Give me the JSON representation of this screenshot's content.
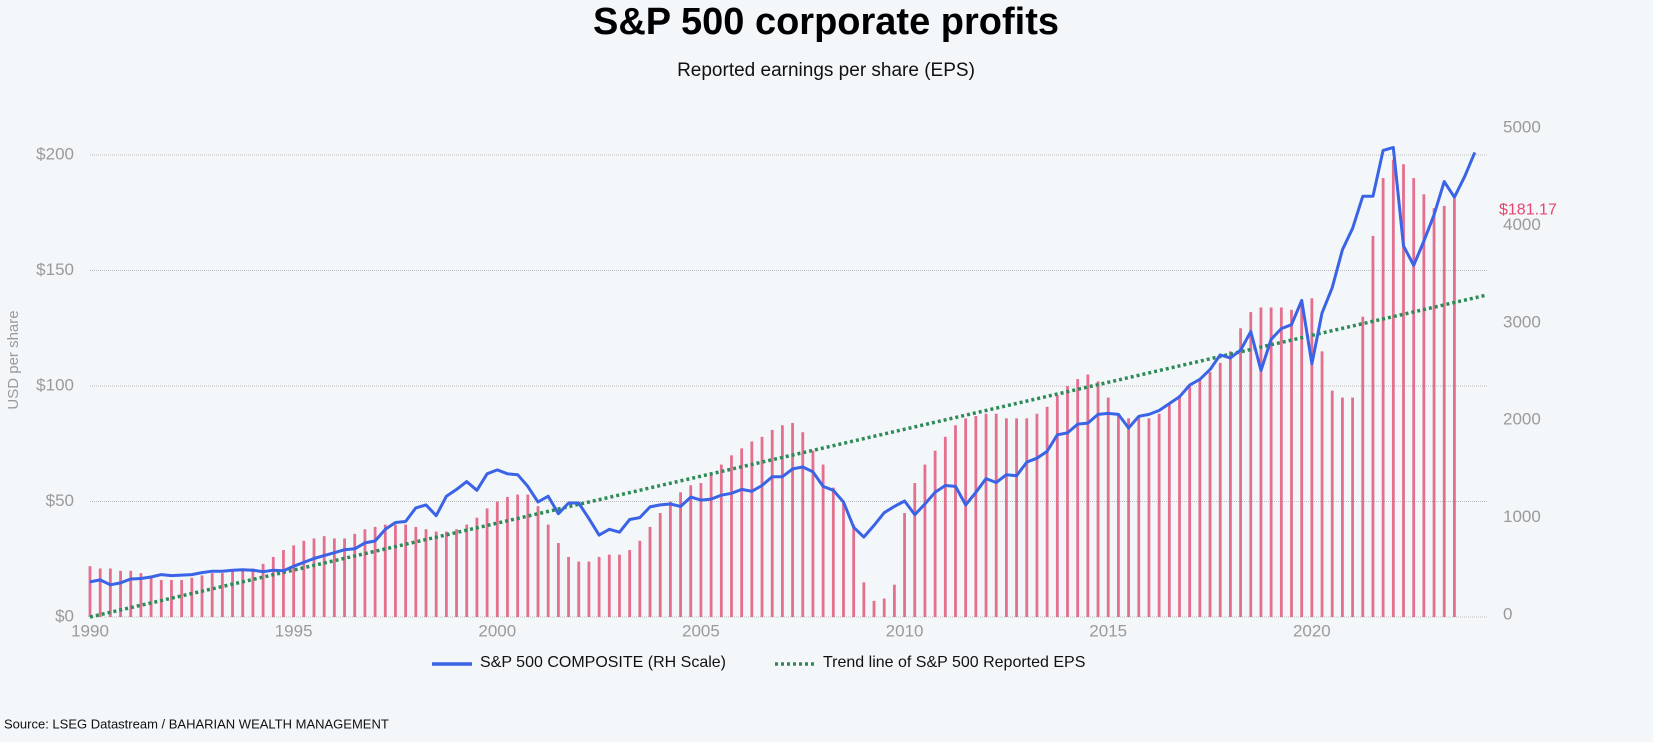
{
  "chart_data": {
    "type": "bar-line",
    "title": "S&P 500 corporate profits",
    "subtitle": "Reported earnings per share (EPS)",
    "ylabel": "USD per share",
    "source": "Source: LSEG Datastream / BAHARIAN WEALTH MANAGEMENT",
    "annotation": "$181.17",
    "annotation_color": "#e8456e",
    "xlim": [
      1990,
      2024.3
    ],
    "xticks": [
      1990,
      1995,
      2000,
      2005,
      2010,
      2015,
      2020
    ],
    "ylim": [
      0,
      211.7
    ],
    "yticks": [
      {
        "value": 0,
        "label": "$0"
      },
      {
        "value": 50,
        "label": "$50"
      },
      {
        "value": 100,
        "label": "$100"
      },
      {
        "value": 150,
        "label": "$150"
      },
      {
        "value": 200,
        "label": "$200"
      }
    ],
    "y2lim": [
      0,
      5000
    ],
    "y2ticks": [
      0,
      1000,
      2000,
      3000,
      4000,
      5000
    ],
    "grid": true,
    "legend": "bottom",
    "x": [
      1990,
      1990.25,
      1990.5,
      1990.75,
      1991,
      1991.25,
      1991.5,
      1991.75,
      1992,
      1992.25,
      1992.5,
      1992.75,
      1993,
      1993.25,
      1993.5,
      1993.75,
      1994,
      1994.25,
      1994.5,
      1994.75,
      1995,
      1995.25,
      1995.5,
      1995.75,
      1996,
      1996.25,
      1996.5,
      1996.75,
      1997,
      1997.25,
      1997.5,
      1997.75,
      1998,
      1998.25,
      1998.5,
      1998.75,
      1999,
      1999.25,
      1999.5,
      1999.75,
      2000,
      2000.25,
      2000.5,
      2000.75,
      2001,
      2001.25,
      2001.5,
      2001.75,
      2002,
      2002.25,
      2002.5,
      2002.75,
      2003,
      2003.25,
      2003.5,
      2003.75,
      2004,
      2004.25,
      2004.5,
      2004.75,
      2005,
      2005.25,
      2005.5,
      2005.75,
      2006,
      2006.25,
      2006.5,
      2006.75,
      2007,
      2007.25,
      2007.5,
      2007.75,
      2008,
      2008.25,
      2008.5,
      2008.75,
      2009,
      2009.25,
      2009.5,
      2009.75,
      2010,
      2010.25,
      2010.5,
      2010.75,
      2011,
      2011.25,
      2011.5,
      2011.75,
      2012,
      2012.25,
      2012.5,
      2012.75,
      2013,
      2013.25,
      2013.5,
      2013.75,
      2014,
      2014.25,
      2014.5,
      2014.75,
      2015,
      2015.25,
      2015.5,
      2015.75,
      2016,
      2016.25,
      2016.5,
      2016.75,
      2017,
      2017.25,
      2017.5,
      2017.75,
      2018,
      2018.25,
      2018.5,
      2018.75,
      2019,
      2019.25,
      2019.5,
      2019.75,
      2020,
      2020.25,
      2020.5,
      2020.75,
      2021,
      2021.25,
      2021.5,
      2021.75,
      2022,
      2022.25,
      2022.5,
      2022.75,
      2023,
      2023.25,
      2023.5,
      2023.75,
      2024
    ],
    "series": [
      {
        "type": "bar",
        "color": "#e0577a",
        "values": [
          22,
          21,
          21,
          20,
          20,
          19,
          17,
          16,
          16,
          16,
          17,
          18,
          19,
          19,
          20,
          20,
          21,
          23,
          26,
          29,
          31,
          33,
          34,
          35,
          34,
          34,
          36,
          38,
          39,
          40,
          40,
          40,
          39,
          38,
          37,
          37,
          38,
          40,
          43,
          47,
          50,
          52,
          53,
          53,
          48,
          40,
          32,
          26,
          24,
          24,
          26,
          27,
          27,
          29,
          33,
          39,
          45,
          50,
          54,
          57,
          58,
          62,
          66,
          70,
          73,
          76,
          78,
          81,
          83,
          84,
          80,
          72,
          66,
          56,
          50,
          40,
          15,
          7,
          8,
          14,
          45,
          58,
          66,
          72,
          78,
          83,
          86,
          87,
          88,
          88,
          86,
          86,
          86,
          88,
          91,
          96,
          100,
          103,
          105,
          102,
          95,
          88,
          86,
          87,
          86,
          88,
          92,
          96,
          100,
          103,
          106,
          110,
          115,
          125,
          132,
          134,
          134,
          134,
          133,
          137,
          138,
          115,
          98,
          95,
          95,
          130,
          165,
          190,
          198,
          196,
          190,
          183,
          177,
          178,
          181.17,
          null,
          null
        ]
      },
      {
        "type": "line",
        "name": "S&P 500 COMPOSITE (RH Scale)",
        "color": "#3a63e6",
        "axis": "y2",
        "values": [
          340,
          360,
          310,
          330,
          370,
          375,
          390,
          415,
          405,
          410,
          415,
          435,
          450,
          450,
          460,
          465,
          460,
          445,
          460,
          455,
          500,
          540,
          580,
          610,
          640,
          670,
          680,
          740,
          760,
          880,
          950,
          960,
          1100,
          1130,
          1020,
          1220,
          1290,
          1370,
          1280,
          1450,
          1490,
          1450,
          1440,
          1320,
          1160,
          1220,
          1040,
          1150,
          1150,
          990,
          820,
          880,
          850,
          980,
          1000,
          1110,
          1130,
          1140,
          1115,
          1210,
          1180,
          1190,
          1230,
          1250,
          1290,
          1270,
          1330,
          1420,
          1420,
          1500,
          1520,
          1470,
          1320,
          1280,
          1160,
          900,
          800,
          920,
          1050,
          1115,
          1170,
          1030,
          1140,
          1260,
          1330,
          1320,
          1130,
          1260,
          1400,
          1360,
          1440,
          1430,
          1570,
          1610,
          1680,
          1850,
          1870,
          1960,
          1970,
          2060,
          2070,
          2060,
          1920,
          2040,
          2060,
          2100,
          2170,
          2240,
          2360,
          2420,
          2520,
          2670,
          2640,
          2720,
          2910,
          2510,
          2830,
          2940,
          2980,
          3230,
          2580,
          3100,
          3360,
          3750,
          3970,
          4300,
          4300,
          4770,
          4800,
          3790,
          3590,
          3840,
          4110,
          4450,
          4290,
          4500,
          4750
        ]
      },
      {
        "type": "trend",
        "name": "Trend line of S&P 500 Reported EPS",
        "color": "#2e8b57",
        "x": [
          1990,
          2024.3
        ],
        "values": [
          0,
          139.4
        ]
      }
    ]
  }
}
